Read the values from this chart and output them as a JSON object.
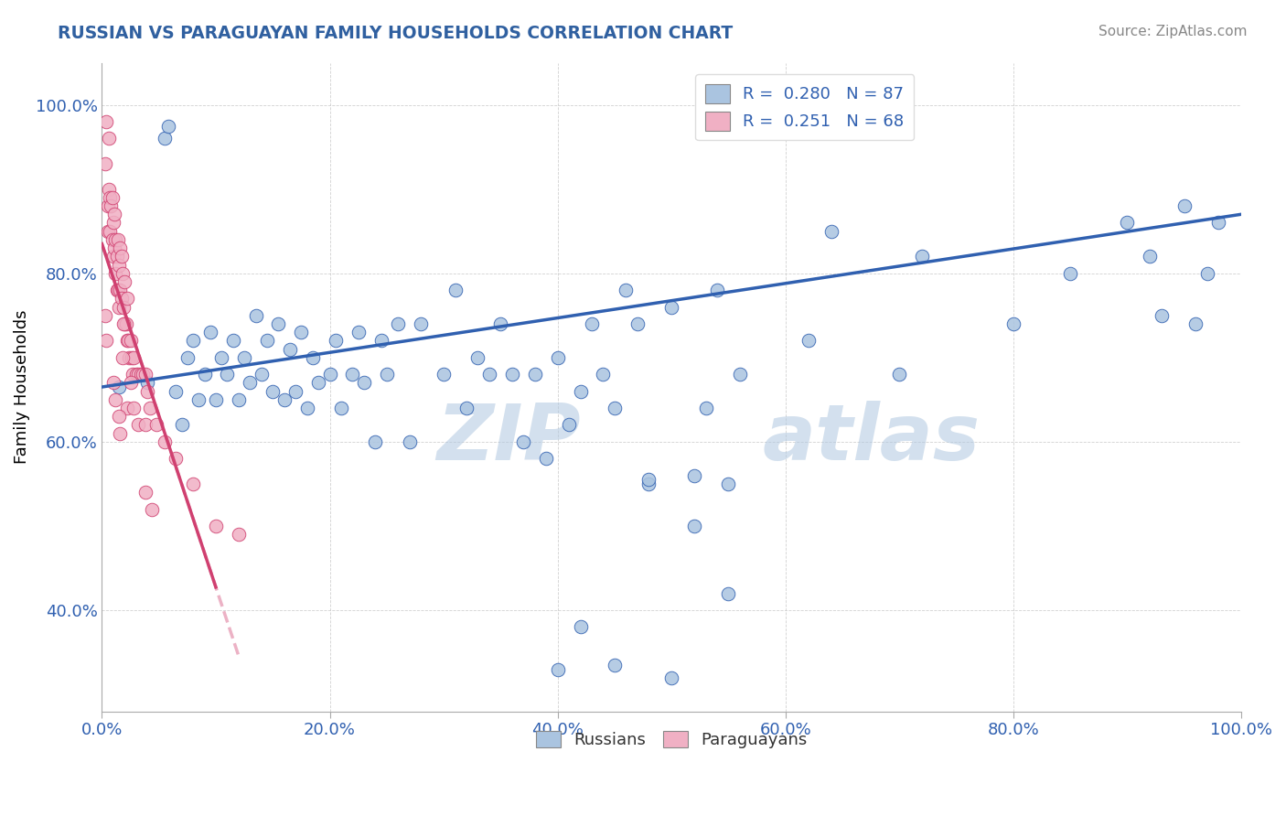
{
  "title": "RUSSIAN VS PARAGUAYAN FAMILY HOUSEHOLDS CORRELATION CHART",
  "source_text": "Source: ZipAtlas.com",
  "ylabel": "Family Households",
  "xlim": [
    0,
    1.0
  ],
  "ylim": [
    0.28,
    1.05
  ],
  "xticks": [
    0.0,
    0.2,
    0.4,
    0.6,
    0.8,
    1.0
  ],
  "xticklabels": [
    "0.0%",
    "20.0%",
    "40.0%",
    "60.0%",
    "80.0%",
    "100.0%"
  ],
  "yticks": [
    0.4,
    0.6,
    0.8,
    1.0
  ],
  "yticklabels": [
    "40.0%",
    "60.0%",
    "80.0%",
    "100.0%"
  ],
  "legend_R_russian": "0.280",
  "legend_N_russian": "87",
  "legend_R_paraguayan": "0.251",
  "legend_N_paraguayan": "68",
  "color_russian": "#aac4e0",
  "color_paraguayan": "#f0b0c4",
  "color_trendline_russian": "#3060b0",
  "color_trendline_paraguayan": "#d04070",
  "color_text_values": "#3060b0",
  "watermark_color": "#d0dff0",
  "russians_x": [
    0.015,
    0.04,
    0.055,
    0.058,
    0.065,
    0.07,
    0.075,
    0.08,
    0.085,
    0.09,
    0.095,
    0.1,
    0.105,
    0.11,
    0.115,
    0.12,
    0.125,
    0.13,
    0.135,
    0.14,
    0.145,
    0.15,
    0.155,
    0.16,
    0.165,
    0.17,
    0.175,
    0.18,
    0.185,
    0.19,
    0.2,
    0.205,
    0.21,
    0.22,
    0.225,
    0.23,
    0.24,
    0.245,
    0.25,
    0.26,
    0.27,
    0.28,
    0.3,
    0.31,
    0.32,
    0.33,
    0.34,
    0.35,
    0.36,
    0.37,
    0.38,
    0.39,
    0.4,
    0.41,
    0.42,
    0.43,
    0.44,
    0.45,
    0.46,
    0.47,
    0.48,
    0.5,
    0.52,
    0.53,
    0.54,
    0.55,
    0.56,
    0.62,
    0.64,
    0.7,
    0.72,
    0.8,
    0.85,
    0.9,
    0.92,
    0.93,
    0.95,
    0.96,
    0.97,
    0.98,
    0.4,
    0.42,
    0.45,
    0.48,
    0.5,
    0.52,
    0.55
  ],
  "russians_y": [
    0.665,
    0.67,
    0.96,
    0.975,
    0.66,
    0.62,
    0.7,
    0.72,
    0.65,
    0.68,
    0.73,
    0.65,
    0.7,
    0.68,
    0.72,
    0.65,
    0.7,
    0.67,
    0.75,
    0.68,
    0.72,
    0.66,
    0.74,
    0.65,
    0.71,
    0.66,
    0.73,
    0.64,
    0.7,
    0.67,
    0.68,
    0.72,
    0.64,
    0.68,
    0.73,
    0.67,
    0.6,
    0.72,
    0.68,
    0.74,
    0.6,
    0.74,
    0.68,
    0.78,
    0.64,
    0.7,
    0.68,
    0.74,
    0.68,
    0.6,
    0.68,
    0.58,
    0.7,
    0.62,
    0.66,
    0.74,
    0.68,
    0.64,
    0.78,
    0.74,
    0.55,
    0.76,
    0.5,
    0.64,
    0.78,
    0.42,
    0.68,
    0.72,
    0.85,
    0.68,
    0.82,
    0.74,
    0.8,
    0.86,
    0.82,
    0.75,
    0.88,
    0.74,
    0.8,
    0.86,
    0.33,
    0.38,
    0.335,
    0.555,
    0.32,
    0.56,
    0.55
  ],
  "paraguayans_x": [
    0.003,
    0.004,
    0.005,
    0.005,
    0.006,
    0.006,
    0.007,
    0.007,
    0.008,
    0.009,
    0.009,
    0.01,
    0.01,
    0.011,
    0.011,
    0.012,
    0.012,
    0.013,
    0.013,
    0.014,
    0.014,
    0.015,
    0.015,
    0.016,
    0.016,
    0.017,
    0.017,
    0.018,
    0.019,
    0.02,
    0.02,
    0.021,
    0.022,
    0.022,
    0.023,
    0.024,
    0.025,
    0.026,
    0.027,
    0.028,
    0.03,
    0.032,
    0.034,
    0.036,
    0.038,
    0.04,
    0.018,
    0.019,
    0.022,
    0.025,
    0.028,
    0.032,
    0.038,
    0.042,
    0.048,
    0.055,
    0.065,
    0.08,
    0.1,
    0.12,
    0.003,
    0.004,
    0.015,
    0.016,
    0.01,
    0.012,
    0.038,
    0.044
  ],
  "paraguayans_y": [
    0.93,
    0.98,
    0.88,
    0.85,
    0.9,
    0.96,
    0.85,
    0.89,
    0.88,
    0.84,
    0.89,
    0.82,
    0.86,
    0.83,
    0.87,
    0.8,
    0.84,
    0.78,
    0.82,
    0.78,
    0.84,
    0.76,
    0.81,
    0.78,
    0.83,
    0.77,
    0.82,
    0.8,
    0.76,
    0.74,
    0.79,
    0.74,
    0.72,
    0.77,
    0.72,
    0.7,
    0.72,
    0.7,
    0.68,
    0.7,
    0.68,
    0.68,
    0.68,
    0.68,
    0.68,
    0.66,
    0.7,
    0.74,
    0.64,
    0.67,
    0.64,
    0.62,
    0.62,
    0.64,
    0.62,
    0.6,
    0.58,
    0.55,
    0.5,
    0.49,
    0.75,
    0.72,
    0.63,
    0.61,
    0.67,
    0.65,
    0.54,
    0.52
  ]
}
